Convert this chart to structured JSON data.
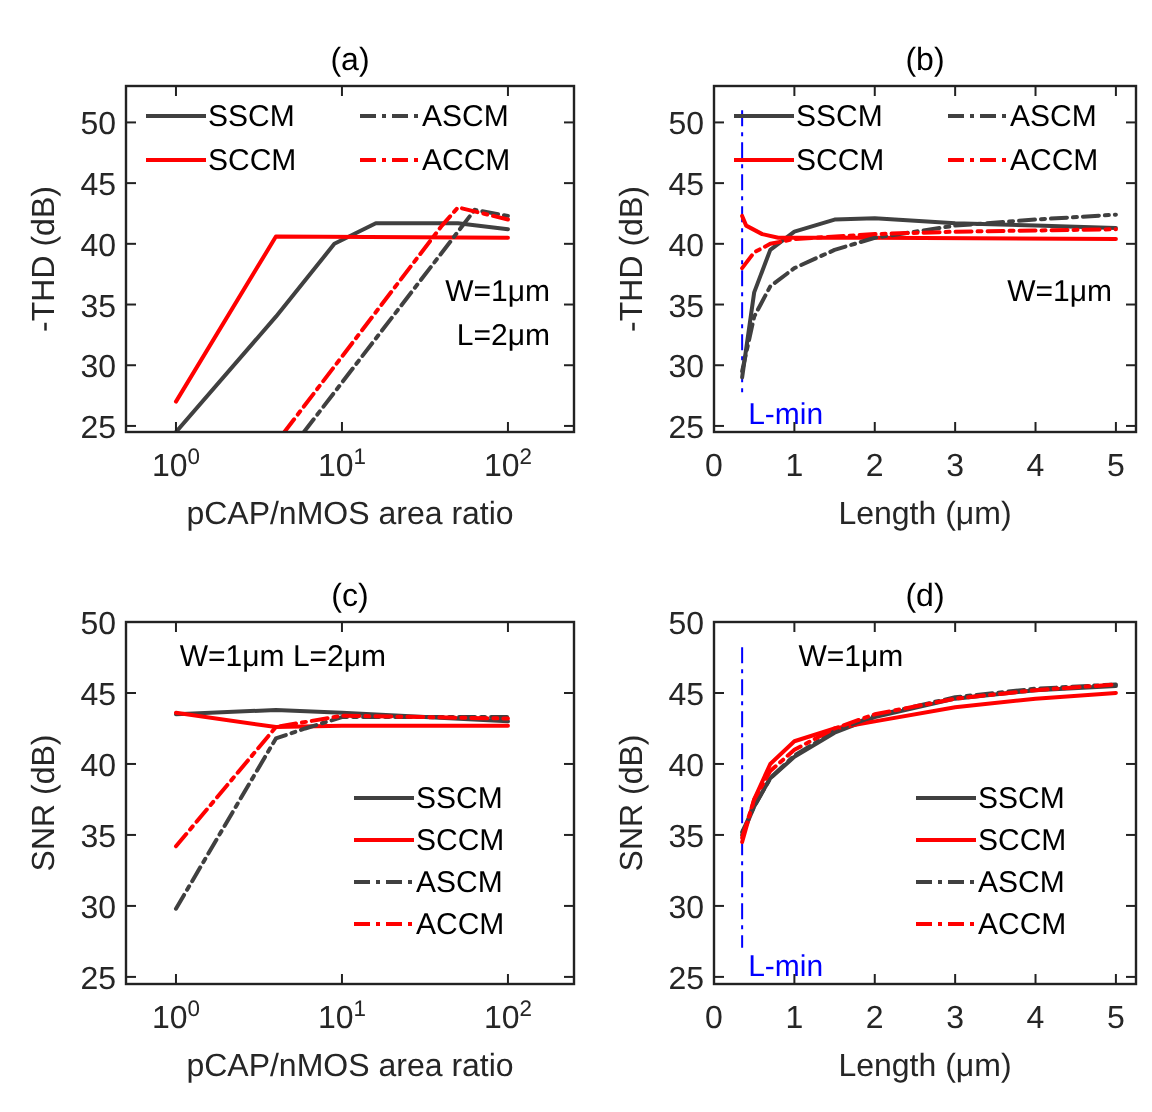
{
  "chart_data": [
    {
      "type": "line",
      "title": "(a)",
      "xlabel": "pCAP/nMOS area ratio",
      "ylabel": "-THD (dB)",
      "log": "x",
      "xlim": [
        0.5,
        250
      ],
      "xticks": [
        {
          "value": 1,
          "label": "10$^{0}$"
        },
        {
          "value": 10,
          "label": "10$^{1}$"
        },
        {
          "value": 100,
          "label": "10$^{2}$"
        }
      ],
      "ylim": [
        24.5,
        53
      ],
      "yticks": [
        25,
        30,
        35,
        40,
        45,
        50
      ],
      "legend": "top",
      "annotations": [
        "W=1μm",
        "L=2μm"
      ],
      "series": [
        {
          "name": "SSCM",
          "color": "#404040",
          "line_style": "solid",
          "x": [
            1,
            4,
            9,
            16,
            50,
            100
          ],
          "values": [
            24.5,
            34,
            40,
            41.7,
            41.7,
            41.2
          ]
        },
        {
          "name": "SCCM",
          "color": "#ff0000",
          "line_style": "solid",
          "x": [
            1,
            4,
            100
          ],
          "values": [
            27,
            40.6,
            40.5
          ]
        },
        {
          "name": "ASCM",
          "color": "#404040",
          "line_style": "dashed",
          "x": [
            5.9,
            50,
            63,
            100
          ],
          "values": [
            24.5,
            41,
            42.8,
            42.3
          ]
        },
        {
          "name": "ACCM",
          "color": "#ff0000",
          "line_style": "dashed",
          "x": [
            4.5,
            40,
            50,
            100
          ],
          "values": [
            24.5,
            41.5,
            43,
            42
          ]
        }
      ]
    },
    {
      "type": "line",
      "title": "(b)",
      "xlabel": "Length (μm)",
      "ylabel": "-THD (dB)",
      "xlim": [
        0,
        5.25
      ],
      "xticks": [
        0,
        1,
        2,
        3,
        4,
        5
      ],
      "ylim": [
        24.5,
        53
      ],
      "yticks": [
        25,
        30,
        35,
        40,
        45,
        50
      ],
      "legend": "top",
      "annotations": [
        "W=1μm"
      ],
      "ref_lines": [
        {
          "axis": "x",
          "value": 0.35,
          "label": "L-min",
          "color": "#0000ff",
          "line_style": "dashed"
        }
      ],
      "series": [
        {
          "name": "SSCM",
          "color": "#404040",
          "line_style": "solid",
          "x": [
            0.35,
            0.5,
            0.7,
            1,
            1.5,
            2,
            3,
            4,
            5
          ],
          "values": [
            29,
            36,
            39.5,
            41,
            42,
            42.1,
            41.7,
            41.5,
            41.3
          ]
        },
        {
          "name": "SCCM",
          "color": "#ff0000",
          "line_style": "solid",
          "x": [
            0.35,
            0.4,
            0.6,
            0.8,
            1,
            2,
            5
          ],
          "values": [
            42.3,
            41.5,
            40.8,
            40.5,
            40.5,
            40.5,
            40.4
          ]
        },
        {
          "name": "ASCM",
          "color": "#404040",
          "line_style": "dashed",
          "x": [
            0.35,
            0.5,
            0.7,
            1,
            1.5,
            2,
            3,
            4,
            5
          ],
          "values": [
            29.5,
            34,
            36.5,
            38,
            39.5,
            40.5,
            41.5,
            42,
            42.4
          ]
        },
        {
          "name": "ACCM",
          "color": "#ff0000",
          "line_style": "dashed",
          "x": [
            0.35,
            0.5,
            0.7,
            1,
            2,
            3,
            5
          ],
          "values": [
            38,
            39.3,
            40,
            40.4,
            40.8,
            41,
            41.2
          ]
        }
      ]
    },
    {
      "type": "line",
      "title": "(c)",
      "xlabel": "pCAP/nMOS area ratio",
      "ylabel": "SNR (dB)",
      "log": "x",
      "xlim": [
        0.5,
        250
      ],
      "xticks": [
        {
          "value": 1,
          "label": "10$^{0}$"
        },
        {
          "value": 10,
          "label": "10$^{1}$"
        },
        {
          "value": 100,
          "label": "10$^{2}$"
        }
      ],
      "ylim": [
        24.5,
        50
      ],
      "yticks": [
        25,
        30,
        35,
        40,
        45,
        50
      ],
      "legend": "bottom right",
      "annotations": [
        "W=1μm  L=2μm"
      ],
      "series": [
        {
          "name": "SSCM",
          "color": "#404040",
          "line_style": "solid",
          "x": [
            1,
            4,
            10,
            100
          ],
          "values": [
            43.5,
            43.8,
            43.6,
            43
          ]
        },
        {
          "name": "SCCM",
          "color": "#ff0000",
          "line_style": "solid",
          "x": [
            1,
            4,
            10,
            100
          ],
          "values": [
            43.6,
            42.6,
            42.7,
            42.7
          ]
        },
        {
          "name": "ASCM",
          "color": "#404040",
          "line_style": "dashed",
          "x": [
            1,
            4,
            6,
            10,
            100
          ],
          "values": [
            29.8,
            41.8,
            42.5,
            43.3,
            43.3
          ]
        },
        {
          "name": "ACCM",
          "color": "#ff0000",
          "line_style": "dashed",
          "x": [
            1,
            4,
            10,
            100
          ],
          "values": [
            34.2,
            42.6,
            43.4,
            43.2
          ]
        }
      ]
    },
    {
      "type": "line",
      "title": "(d)",
      "xlabel": "Length (μm)",
      "ylabel": "SNR (dB)",
      "xlim": [
        0,
        5.25
      ],
      "xticks": [
        0,
        1,
        2,
        3,
        4,
        5
      ],
      "ylim": [
        24.5,
        50
      ],
      "yticks": [
        25,
        30,
        35,
        40,
        45,
        50
      ],
      "legend": "bottom right",
      "annotations": [
        "W=1μm"
      ],
      "ref_lines": [
        {
          "axis": "x",
          "value": 0.35,
          "label": "L-min",
          "color": "#0000ff",
          "line_style": "dashed"
        }
      ],
      "series": [
        {
          "name": "SSCM",
          "color": "#404040",
          "line_style": "solid",
          "x": [
            0.35,
            0.5,
            0.7,
            1,
            1.5,
            2,
            3,
            4,
            5
          ],
          "values": [
            35,
            37,
            39,
            40.5,
            42.2,
            43.3,
            44.6,
            45.2,
            45.5
          ]
        },
        {
          "name": "SCCM",
          "color": "#ff0000",
          "line_style": "solid",
          "x": [
            0.35,
            0.5,
            0.7,
            1,
            1.5,
            2,
            3,
            4,
            5
          ],
          "values": [
            34.5,
            37.5,
            40,
            41.6,
            42.5,
            43,
            44,
            44.6,
            45
          ]
        },
        {
          "name": "ASCM",
          "color": "#404040",
          "line_style": "dashed",
          "x": [
            0.35,
            0.5,
            0.7,
            1,
            1.5,
            2,
            3,
            4,
            5
          ],
          "values": [
            35.2,
            37,
            39,
            40.6,
            42.3,
            43.4,
            44.7,
            45.3,
            45.6
          ]
        },
        {
          "name": "ACCM",
          "color": "#ff0000",
          "line_style": "dashed",
          "x": [
            0.35,
            0.5,
            0.7,
            1,
            1.5,
            2,
            3,
            4,
            5
          ],
          "values": [
            34.8,
            37.5,
            39.5,
            41,
            42.5,
            43.5,
            44.6,
            45.2,
            45.6
          ]
        }
      ]
    }
  ]
}
